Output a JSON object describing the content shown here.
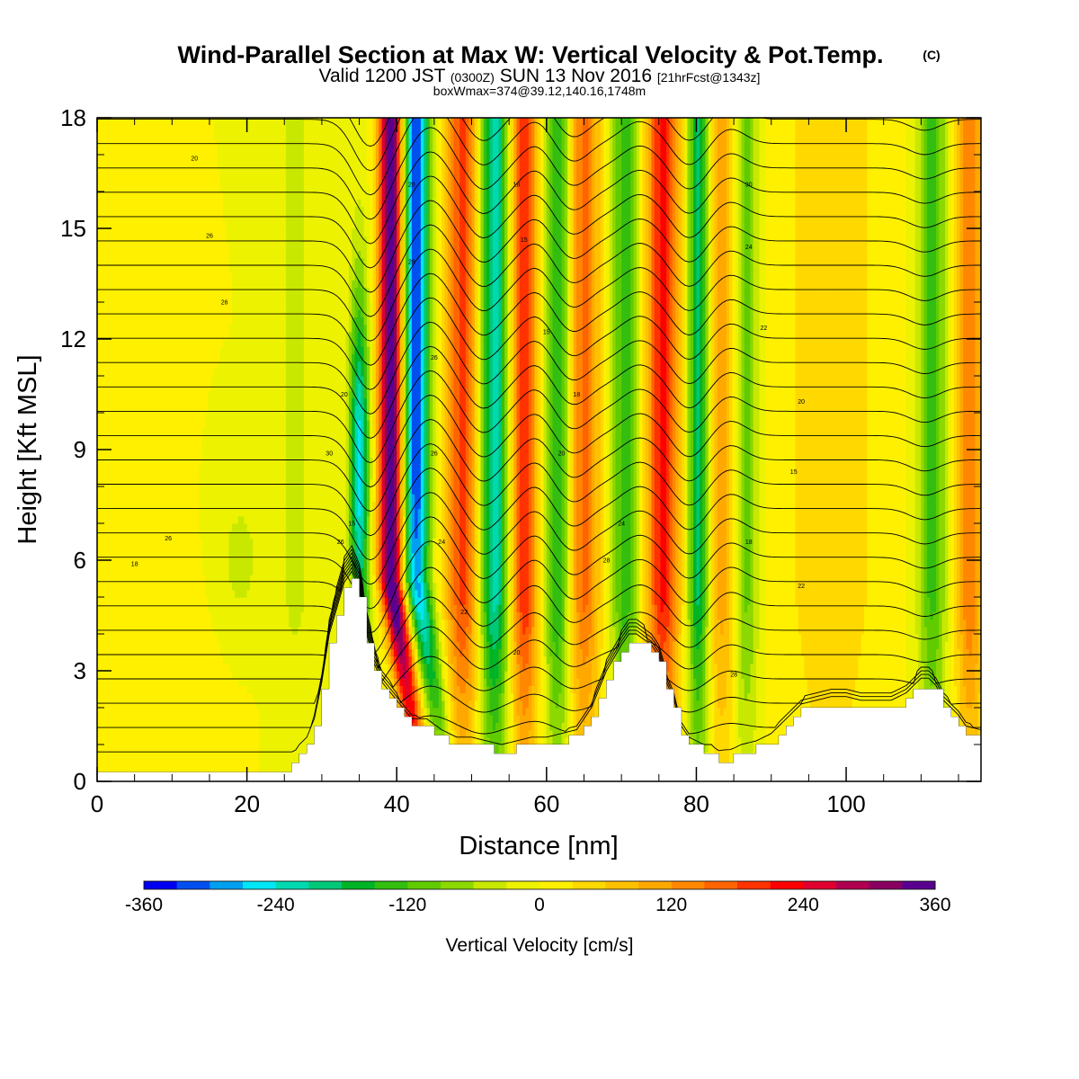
{
  "title": {
    "main": "Wind-Parallel Section at Max W: Vertical Velocity & Pot.Temp.",
    "copyright": "(C)",
    "valid_a": "Valid 1200 JST ",
    "valid_b": "(0300Z)",
    "valid_c": " SUN 13 Nov 2016 ",
    "valid_d": "[21hrFcst@1343z]",
    "box": "boxWmax=374@39.12,140.16,1748m"
  },
  "chart_data": {
    "type": "heatmap",
    "xlabel": "Distance [nm]",
    "ylabel": "Height [Kft MSL]",
    "xlim": [
      0,
      118
    ],
    "ylim": [
      0,
      18
    ],
    "xticks": [
      0,
      20,
      40,
      60,
      80,
      100
    ],
    "yticks": [
      0,
      3,
      6,
      9,
      12,
      15,
      18
    ],
    "xtick_labels": [
      "0",
      "20",
      "40",
      "60",
      "80",
      "100"
    ],
    "ytick_labels": [
      "0",
      "3",
      "6",
      "9",
      "12",
      "15",
      "18"
    ],
    "field": "Vertical Velocity",
    "colorbar": {
      "label": "Vertical Velocity [cm/s]",
      "levels": [
        -360,
        -330,
        -300,
        -270,
        -240,
        -210,
        -180,
        -150,
        -120,
        -90,
        -60,
        -30,
        0,
        30,
        60,
        90,
        120,
        150,
        180,
        210,
        240,
        270,
        300,
        330,
        360,
        390,
        420
      ],
      "colors": [
        "#0000f0",
        "#0050f0",
        "#00a0f0",
        "#00e6f5",
        "#00d8b0",
        "#00c878",
        "#00b428",
        "#33be10",
        "#60cc00",
        "#8cd800",
        "#c8e800",
        "#ecf200",
        "#fff000",
        "#ffd800",
        "#ffc000",
        "#ffa800",
        "#ff8800",
        "#ff6400",
        "#ff3200",
        "#ff0000",
        "#e00030",
        "#b00050",
        "#880060",
        "#5a0090"
      ],
      "tick_values": [
        -360,
        -240,
        -120,
        0,
        120,
        240,
        360
      ],
      "tick_labels": [
        "-360",
        "-240",
        "-120",
        "0",
        "120",
        "240",
        "360"
      ]
    },
    "max_updraft_cms": 374,
    "terrain_kft": [
      [
        0,
        0.3
      ],
      [
        5,
        0.3
      ],
      [
        10,
        0.3
      ],
      [
        15,
        0.3
      ],
      [
        20,
        0.3
      ],
      [
        25,
        0.3
      ],
      [
        26,
        0.5
      ],
      [
        27,
        0.8
      ],
      [
        28,
        1.0
      ],
      [
        29,
        1.5
      ],
      [
        30,
        2.5
      ],
      [
        31,
        3.8
      ],
      [
        32,
        4.5
      ],
      [
        33,
        5.2
      ],
      [
        34,
        5.5
      ],
      [
        35,
        5.0
      ],
      [
        36,
        3.8
      ],
      [
        37,
        3.0
      ],
      [
        38,
        2.5
      ],
      [
        40,
        2.0
      ],
      [
        42,
        1.5
      ],
      [
        44,
        1.5
      ],
      [
        46,
        1.2
      ],
      [
        48,
        1.0
      ],
      [
        50,
        1.0
      ],
      [
        52,
        0.9
      ],
      [
        54,
        0.8
      ],
      [
        56,
        0.9
      ],
      [
        58,
        1.0
      ],
      [
        60,
        1.0
      ],
      [
        62,
        1.1
      ],
      [
        64,
        1.2
      ],
      [
        66,
        1.8
      ],
      [
        68,
        2.8
      ],
      [
        70,
        3.5
      ],
      [
        71,
        3.8
      ],
      [
        72,
        3.8
      ],
      [
        74,
        3.5
      ],
      [
        75,
        3.2
      ],
      [
        76,
        2.5
      ],
      [
        77,
        2.0
      ],
      [
        78,
        1.3
      ],
      [
        79,
        1.0
      ],
      [
        80,
        0.9
      ],
      [
        81,
        0.8
      ],
      [
        82,
        0.8
      ],
      [
        83,
        0.6
      ],
      [
        84,
        0.6
      ],
      [
        85,
        0.7
      ],
      [
        86,
        0.8
      ],
      [
        88,
        0.9
      ],
      [
        90,
        1.1
      ],
      [
        92,
        1.5
      ],
      [
        94,
        1.9
      ],
      [
        96,
        2.0
      ],
      [
        98,
        2.1
      ],
      [
        100,
        2.1
      ],
      [
        102,
        2.0
      ],
      [
        104,
        2.0
      ],
      [
        106,
        2.0
      ],
      [
        108,
        2.2
      ],
      [
        110,
        2.6
      ],
      [
        111,
        2.6
      ],
      [
        112,
        2.4
      ],
      [
        113,
        2.0
      ],
      [
        114,
        1.8
      ],
      [
        115,
        1.6
      ],
      [
        116,
        1.3
      ],
      [
        118,
        1.2
      ]
    ],
    "contour_label_values": [
      "20",
      "26",
      "26",
      "26",
      "30",
      "18",
      "20",
      "15",
      "26",
      "28",
      "28",
      "26",
      "26",
      "24",
      "22",
      "20",
      "18",
      "15",
      "15",
      "18",
      "20",
      "24",
      "28",
      "28",
      "30",
      "24",
      "22",
      "20",
      "15",
      "18",
      "22",
      "26",
      "30",
      "24",
      "20",
      "15"
    ]
  }
}
